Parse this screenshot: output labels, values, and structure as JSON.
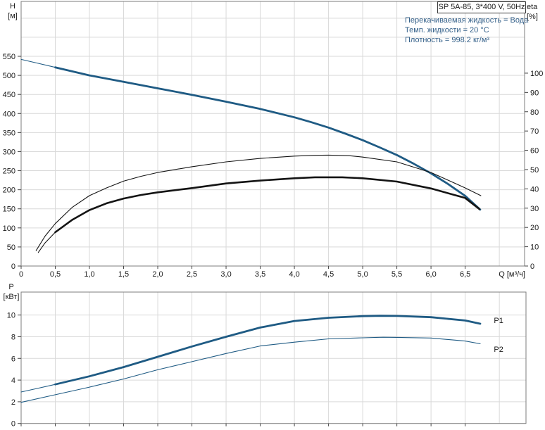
{
  "header": {
    "model_box": "SP 5A-85, 3*400 V, 50Hz",
    "info_lines": [
      "Перекачиваемая жидкость = Вода",
      "Темп. жидкости = 20 °C",
      "Плотность = 998.2 кг/м³"
    ]
  },
  "axis_labels": {
    "h": "H",
    "h_unit": "[м]",
    "eta": "eta",
    "eta_unit": "[%]",
    "p": "P",
    "p_unit": "[кВт]",
    "q": "Q [м³/ч]"
  },
  "colors": {
    "curve_blue": "#1f5b84",
    "curve_black": "#141414",
    "info_text": "#35618a",
    "grid": "#d9d9d9",
    "axis": "#7d7d7d",
    "tick": "#444444",
    "label": "#1a1a1a"
  },
  "chart_data": [
    {
      "type": "line",
      "title": "SP 5A-85, 3*400 V, 50Hz",
      "xlabel": "Q [м³/ч]",
      "ylabel_left_lines": [
        "H",
        "[м]"
      ],
      "ylabel_right_lines": [
        "eta",
        "[%]"
      ],
      "xlim": [
        0,
        7.37
      ],
      "ylim_left": [
        0,
        694
      ],
      "ylim_right": [
        0,
        137.2
      ],
      "grid": true,
      "x_ticks": [
        0,
        0.5,
        1,
        1.5,
        2,
        2.5,
        3,
        3.5,
        4,
        4.5,
        5,
        5.5,
        6,
        6.5
      ],
      "x_tick_labels": [
        "0",
        "0,5",
        "1,0",
        "1,5",
        "2,0",
        "2,5",
        "3,0",
        "3,5",
        "4,0",
        "4,5",
        "5,0",
        "5,5",
        "6,0",
        "6,5"
      ],
      "x_gridlines": [
        0.5,
        1,
        1.5,
        2,
        2.5,
        3,
        3.5,
        4,
        4.5,
        5,
        5.5,
        6,
        6.5,
        7
      ],
      "y_ticks_left": [
        0,
        50,
        100,
        150,
        200,
        250,
        300,
        350,
        400,
        450,
        500,
        550
      ],
      "y_gridlines": [
        50,
        100,
        150,
        200,
        250,
        300,
        350,
        400,
        450,
        500,
        550,
        600,
        650
      ],
      "y_ticks_right": [
        0,
        10,
        20,
        30,
        40,
        50,
        60,
        70,
        80,
        90,
        100
      ],
      "series": [
        {
          "name": "H",
          "axis": "left",
          "color": "curve_blue",
          "segments": [
            {
              "w": 1.1,
              "points": [
                [
                  0,
                  542
                ],
                [
                  0.25,
                  531.5
                ],
                [
                  0.5,
                  521
                ]
              ]
            },
            {
              "w": 2.8,
              "points": [
                [
                  0.5,
                  521
                ],
                [
                  1,
                  500
                ],
                [
                  1.5,
                  483
                ],
                [
                  2,
                  466
                ],
                [
                  2.5,
                  449
                ],
                [
                  3,
                  431
                ],
                [
                  3.5,
                  412
                ],
                [
                  4,
                  390
                ],
                [
                  4.25,
                  377
                ],
                [
                  4.5,
                  363
                ],
                [
                  4.75,
                  347
                ],
                [
                  5,
                  330
                ],
                [
                  5.25,
                  311
                ],
                [
                  5.5,
                  291
                ],
                [
                  5.75,
                  268
                ],
                [
                  6,
                  243
                ],
                [
                  6.25,
                  215
                ],
                [
                  6.5,
                  184
                ],
                [
                  6.72,
                  148
                ]
              ]
            }
          ]
        },
        {
          "name": "eta_pump",
          "axis": "right",
          "color": "curve_black",
          "segments": [
            {
              "w": 1.1,
              "points": [
                [
                  0.22,
                  8
                ],
                [
                  0.35,
                  15.5
                ],
                [
                  0.5,
                  22
                ],
                [
                  0.75,
                  30.5
                ],
                [
                  1,
                  36.5
                ],
                [
                  1.25,
                  40.5
                ],
                [
                  1.5,
                  44
                ],
                [
                  1.75,
                  46.5
                ],
                [
                  2,
                  48.5
                ],
                [
                  2.5,
                  51.5
                ],
                [
                  3,
                  54
                ],
                [
                  3.5,
                  55.8
                ],
                [
                  4,
                  57
                ],
                [
                  4.3,
                  57.4
                ],
                [
                  4.5,
                  57.5
                ],
                [
                  4.8,
                  57.2
                ],
                [
                  5,
                  56.5
                ],
                [
                  5.5,
                  54
                ],
                [
                  6,
                  48.5
                ],
                [
                  6.25,
                  44.5
                ],
                [
                  6.5,
                  40.5
                ],
                [
                  6.73,
                  36.5
                ]
              ]
            }
          ]
        },
        {
          "name": "eta_pump_motor",
          "axis": "right",
          "color": "curve_black",
          "segments": [
            {
              "w": 1.1,
              "points": [
                [
                  0.25,
                  7
                ],
                [
                  0.35,
                  12
                ],
                [
                  0.5,
                  17.5
                ]
              ]
            },
            {
              "w": 2.6,
              "points": [
                [
                  0.5,
                  17.5
                ],
                [
                  0.75,
                  24
                ],
                [
                  1,
                  29
                ],
                [
                  1.25,
                  32.5
                ],
                [
                  1.5,
                  35
                ],
                [
                  1.75,
                  36.8
                ],
                [
                  2,
                  38.2
                ],
                [
                  2.5,
                  40.4
                ],
                [
                  3,
                  42.8
                ],
                [
                  3.5,
                  44.3
                ],
                [
                  4,
                  45.5
                ],
                [
                  4.3,
                  46
                ],
                [
                  4.7,
                  46
                ],
                [
                  5,
                  45.5
                ],
                [
                  5.5,
                  43.8
                ],
                [
                  6,
                  40.2
                ],
                [
                  6.5,
                  35.3
                ],
                [
                  6.71,
                  29.5
                ]
              ]
            }
          ]
        }
      ],
      "series_labels": []
    },
    {
      "type": "line",
      "title": "",
      "xlabel": "",
      "ylabel_left_lines": [
        "P",
        "[кВт]"
      ],
      "xlim": [
        0,
        7.39
      ],
      "ylim_left": [
        0,
        12.12
      ],
      "grid": true,
      "x_ticks": [
        0,
        0.5,
        1,
        1.5,
        2,
        2.5,
        3,
        3.5,
        4,
        4.5,
        5,
        5.5,
        6,
        6.5
      ],
      "x_tick_labels": null,
      "x_gridlines": [
        0.5,
        1,
        1.5,
        2,
        2.5,
        3,
        3.5,
        4,
        4.5,
        5,
        5.5,
        6,
        6.5,
        7
      ],
      "y_ticks_left": [
        0,
        2,
        4,
        6,
        8,
        10
      ],
      "y_gridlines": [
        2,
        4,
        6,
        8,
        10
      ],
      "series": [
        {
          "name": "P1",
          "axis": "left",
          "color": "curve_blue",
          "segments": [
            {
              "w": 1.1,
              "points": [
                [
                  0,
                  2.9
                ],
                [
                  0.25,
                  3.25
                ],
                [
                  0.5,
                  3.6
                ]
              ]
            },
            {
              "w": 2.8,
              "points": [
                [
                  0.5,
                  3.6
                ],
                [
                  1,
                  4.35
                ],
                [
                  1.5,
                  5.2
                ],
                [
                  2,
                  6.15
                ],
                [
                  2.5,
                  7.1
                ],
                [
                  3,
                  8.0
                ],
                [
                  3.5,
                  8.85
                ],
                [
                  4,
                  9.45
                ],
                [
                  4.5,
                  9.75
                ],
                [
                  5,
                  9.9
                ],
                [
                  5.25,
                  9.93
                ],
                [
                  5.5,
                  9.92
                ],
                [
                  6,
                  9.8
                ],
                [
                  6.5,
                  9.5
                ],
                [
                  6.72,
                  9.2
                ]
              ]
            }
          ]
        },
        {
          "name": "P2",
          "axis": "left",
          "color": "curve_blue",
          "segments": [
            {
              "w": 1.1,
              "points": [
                [
                  0,
                  1.95
                ],
                [
                  0.5,
                  2.65
                ],
                [
                  1,
                  3.35
                ],
                [
                  1.5,
                  4.1
                ],
                [
                  2,
                  4.95
                ],
                [
                  2.5,
                  5.7
                ],
                [
                  3,
                  6.45
                ],
                [
                  3.5,
                  7.15
                ],
                [
                  4,
                  7.5
                ],
                [
                  4.5,
                  7.8
                ],
                [
                  5,
                  7.9
                ],
                [
                  5.3,
                  7.95
                ],
                [
                  5.5,
                  7.94
                ],
                [
                  6,
                  7.88
                ],
                [
                  6.5,
                  7.6
                ],
                [
                  6.72,
                  7.35
                ]
              ]
            }
          ]
        }
      ],
      "series_labels": [
        {
          "text": "P1",
          "x": 6.92,
          "y": 9.53
        },
        {
          "text": "P2",
          "x": 6.92,
          "y": 6.86
        }
      ]
    }
  ]
}
